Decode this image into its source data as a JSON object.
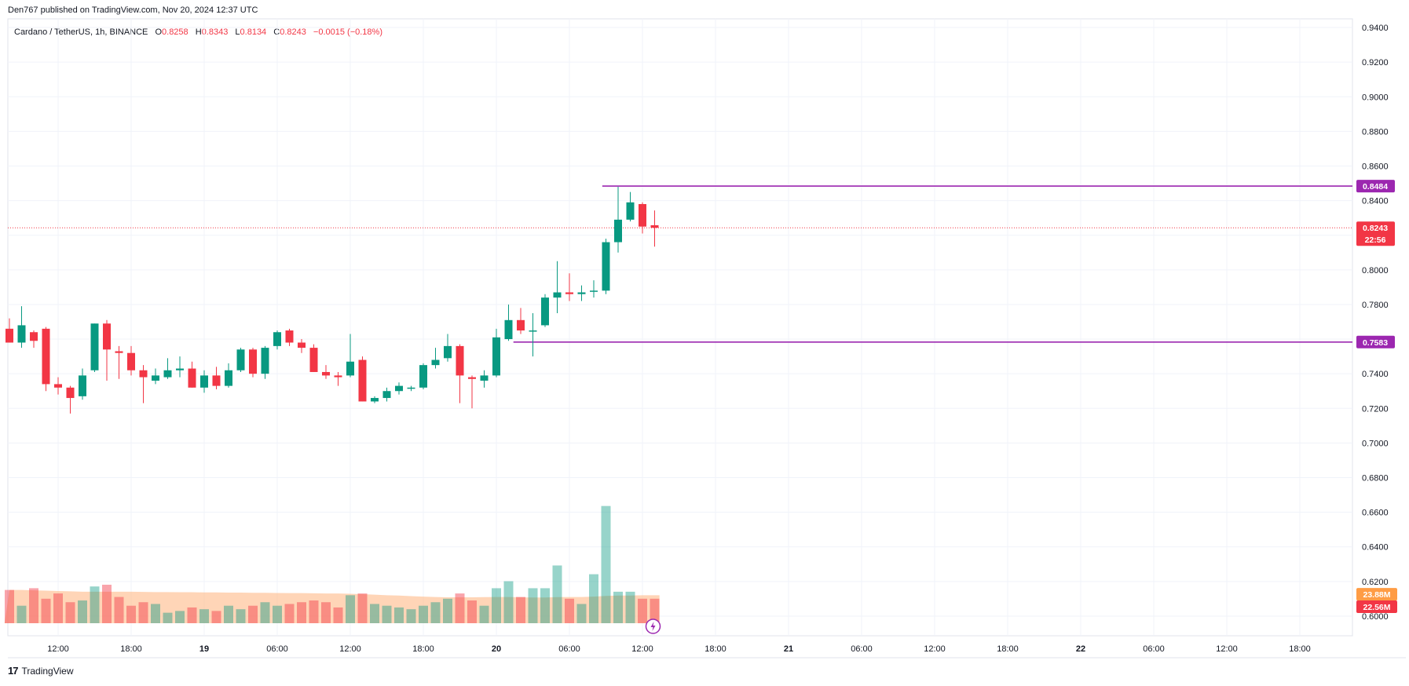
{
  "header": {
    "publisher": "Den767 published on TradingView.com, Nov 20, 2024 12:37 UTC"
  },
  "legend": {
    "symbol": "Cardano / TetherUS, 1h, BINANCE",
    "o_key": "O",
    "o_val": "0.8258",
    "h_key": "H",
    "h_val": "0.8343",
    "l_key": "L",
    "l_val": "0.8134",
    "c_key": "C",
    "c_val": "0.8243",
    "change": "−0.0015 (−0.18%)"
  },
  "footer": {
    "logo": "17",
    "brand": "TradingView"
  },
  "colors": {
    "up": "#089981",
    "down": "#f23645",
    "level": "#9c27b0",
    "ma": "#ffbf91"
  },
  "chart_data": {
    "type": "candlestick",
    "title": "Cardano / TetherUS, 1h, BINANCE",
    "y_range": [
      0.595,
      0.945
    ],
    "y_ticks": [
      "0.9400",
      "0.9200",
      "0.9000",
      "0.8800",
      "0.8600",
      "0.8400",
      "0.8200",
      "0.8000",
      "0.7800",
      "0.7600",
      "0.7400",
      "0.7200",
      "0.7000",
      "0.6800",
      "0.6600",
      "0.6400",
      "0.6200",
      "0.6000"
    ],
    "x_ticks": [
      {
        "label": "12:00",
        "i": 4,
        "bold": false
      },
      {
        "label": "18:00",
        "i": 10,
        "bold": false
      },
      {
        "label": "19",
        "i": 16,
        "bold": true
      },
      {
        "label": "06:00",
        "i": 22,
        "bold": false
      },
      {
        "label": "12:00",
        "i": 28,
        "bold": false
      },
      {
        "label": "18:00",
        "i": 34,
        "bold": false
      },
      {
        "label": "20",
        "i": 40,
        "bold": true
      },
      {
        "label": "06:00",
        "i": 46,
        "bold": false
      },
      {
        "label": "12:00",
        "i": 52,
        "bold": false
      },
      {
        "label": "18:00",
        "i": 58,
        "bold": false
      },
      {
        "label": "21",
        "i": 64,
        "bold": true
      },
      {
        "label": "06:00",
        "i": 70,
        "bold": false
      },
      {
        "label": "12:00",
        "i": 76,
        "bold": false
      },
      {
        "label": "18:00",
        "i": 82,
        "bold": false
      },
      {
        "label": "22",
        "i": 88,
        "bold": true
      },
      {
        "label": "06:00",
        "i": 94,
        "bold": false
      },
      {
        "label": "12:00",
        "i": 100,
        "bold": false
      },
      {
        "label": "18:00",
        "i": 106,
        "bold": false
      }
    ],
    "candles": [
      [
        0.766,
        0.772,
        0.758,
        0.758
      ],
      [
        0.758,
        0.779,
        0.755,
        0.768
      ],
      [
        0.764,
        0.765,
        0.755,
        0.759
      ],
      [
        0.766,
        0.767,
        0.73,
        0.734
      ],
      [
        0.734,
        0.738,
        0.728,
        0.732
      ],
      [
        0.732,
        0.733,
        0.717,
        0.726
      ],
      [
        0.727,
        0.743,
        0.725,
        0.739
      ],
      [
        0.742,
        0.769,
        0.741,
        0.769
      ],
      [
        0.769,
        0.771,
        0.736,
        0.754
      ],
      [
        0.753,
        0.756,
        0.737,
        0.752
      ],
      [
        0.752,
        0.756,
        0.739,
        0.742
      ],
      [
        0.742,
        0.745,
        0.723,
        0.738
      ],
      [
        0.736,
        0.743,
        0.734,
        0.739
      ],
      [
        0.738,
        0.749,
        0.737,
        0.742
      ],
      [
        0.742,
        0.75,
        0.738,
        0.743
      ],
      [
        0.743,
        0.747,
        0.732,
        0.732
      ],
      [
        0.732,
        0.742,
        0.729,
        0.739
      ],
      [
        0.739,
        0.744,
        0.731,
        0.733
      ],
      [
        0.733,
        0.746,
        0.732,
        0.742
      ],
      [
        0.742,
        0.755,
        0.741,
        0.754
      ],
      [
        0.754,
        0.755,
        0.738,
        0.74
      ],
      [
        0.74,
        0.756,
        0.737,
        0.755
      ],
      [
        0.756,
        0.765,
        0.754,
        0.764
      ],
      [
        0.765,
        0.766,
        0.756,
        0.758
      ],
      [
        0.758,
        0.76,
        0.752,
        0.755
      ],
      [
        0.755,
        0.757,
        0.741,
        0.741
      ],
      [
        0.741,
        0.745,
        0.737,
        0.739
      ],
      [
        0.739,
        0.741,
        0.733,
        0.738
      ],
      [
        0.739,
        0.763,
        0.738,
        0.747
      ],
      [
        0.748,
        0.75,
        0.724,
        0.724
      ],
      [
        0.724,
        0.727,
        0.723,
        0.726
      ],
      [
        0.726,
        0.732,
        0.724,
        0.73
      ],
      [
        0.73,
        0.735,
        0.728,
        0.733
      ],
      [
        0.732,
        0.733,
        0.73,
        0.732
      ],
      [
        0.732,
        0.746,
        0.731,
        0.745
      ],
      [
        0.745,
        0.755,
        0.743,
        0.748
      ],
      [
        0.749,
        0.763,
        0.747,
        0.756
      ],
      [
        0.756,
        0.757,
        0.723,
        0.739
      ],
      [
        0.738,
        0.739,
        0.72,
        0.737
      ],
      [
        0.736,
        0.742,
        0.732,
        0.739
      ],
      [
        0.739,
        0.766,
        0.738,
        0.761
      ],
      [
        0.76,
        0.78,
        0.759,
        0.771
      ],
      [
        0.771,
        0.778,
        0.763,
        0.765
      ],
      [
        0.765,
        0.775,
        0.75,
        0.765
      ],
      [
        0.768,
        0.786,
        0.767,
        0.784
      ],
      [
        0.784,
        0.805,
        0.775,
        0.787
      ],
      [
        0.787,
        0.798,
        0.782,
        0.786
      ],
      [
        0.786,
        0.791,
        0.782,
        0.787
      ],
      [
        0.788,
        0.794,
        0.784,
        0.788
      ],
      [
        0.788,
        0.818,
        0.786,
        0.816
      ],
      [
        0.816,
        0.848,
        0.81,
        0.829
      ],
      [
        0.829,
        0.845,
        0.828,
        0.839
      ],
      [
        0.838,
        0.839,
        0.821,
        0.825
      ],
      [
        0.8258,
        0.8343,
        0.8134,
        0.8243
      ]
    ],
    "volume_scale_max": 0.083,
    "volumes": [
      [
        0.019,
        0.019
      ],
      [
        0.01,
        0.019
      ],
      [
        0.02,
        0.0188
      ],
      [
        0.014,
        0.0186
      ],
      [
        0.017,
        0.0184
      ],
      [
        0.012,
        0.0182
      ],
      [
        0.013,
        0.018
      ],
      [
        0.021,
        0.018
      ],
      [
        0.022,
        0.018
      ],
      [
        0.015,
        0.018
      ],
      [
        0.01,
        0.018
      ],
      [
        0.012,
        0.0179
      ],
      [
        0.011,
        0.0178
      ],
      [
        0.006,
        0.0178
      ],
      [
        0.007,
        0.0177
      ],
      [
        0.009,
        0.0177
      ],
      [
        0.008,
        0.0176
      ],
      [
        0.007,
        0.0176
      ],
      [
        0.01,
        0.0175
      ],
      [
        0.008,
        0.0175
      ],
      [
        0.01,
        0.0174
      ],
      [
        0.012,
        0.0174
      ],
      [
        0.01,
        0.0173
      ],
      [
        0.011,
        0.0172
      ],
      [
        0.012,
        0.0172
      ],
      [
        0.013,
        0.0171
      ],
      [
        0.012,
        0.017
      ],
      [
        0.009,
        0.017
      ],
      [
        0.016,
        0.0168
      ],
      [
        0.017,
        0.0166
      ],
      [
        0.011,
        0.0163
      ],
      [
        0.01,
        0.016
      ],
      [
        0.009,
        0.0158
      ],
      [
        0.008,
        0.0155
      ],
      [
        0.01,
        0.0152
      ],
      [
        0.012,
        0.015
      ],
      [
        0.014,
        0.0148
      ],
      [
        0.017,
        0.0148
      ],
      [
        0.013,
        0.0148
      ],
      [
        0.01,
        0.0149
      ],
      [
        0.02,
        0.015
      ],
      [
        0.024,
        0.015
      ],
      [
        0.015,
        0.0148
      ],
      [
        0.02,
        0.0147
      ],
      [
        0.02,
        0.0147
      ],
      [
        0.033,
        0.0149
      ],
      [
        0.014,
        0.015
      ],
      [
        0.011,
        0.015
      ],
      [
        0.028,
        0.0152
      ],
      [
        0.067,
        0.0156
      ],
      [
        0.018,
        0.0158
      ],
      [
        0.018,
        0.0158
      ],
      [
        0.014,
        0.016
      ],
      [
        0.014,
        0.016
      ]
    ],
    "levels": [
      {
        "value": 0.8484,
        "label": "0.8484",
        "start_i": 48.7
      },
      {
        "value": 0.7583,
        "label": "0.7583",
        "start_i": 41.4
      }
    ],
    "last_price": {
      "value": 0.8243,
      "label": "0.8243",
      "countdown": "22:56"
    },
    "volume_labels": [
      {
        "label": "23.88M",
        "value": 0.6126
      },
      {
        "label": "22.56M",
        "value": 0.6054
      }
    ]
  }
}
